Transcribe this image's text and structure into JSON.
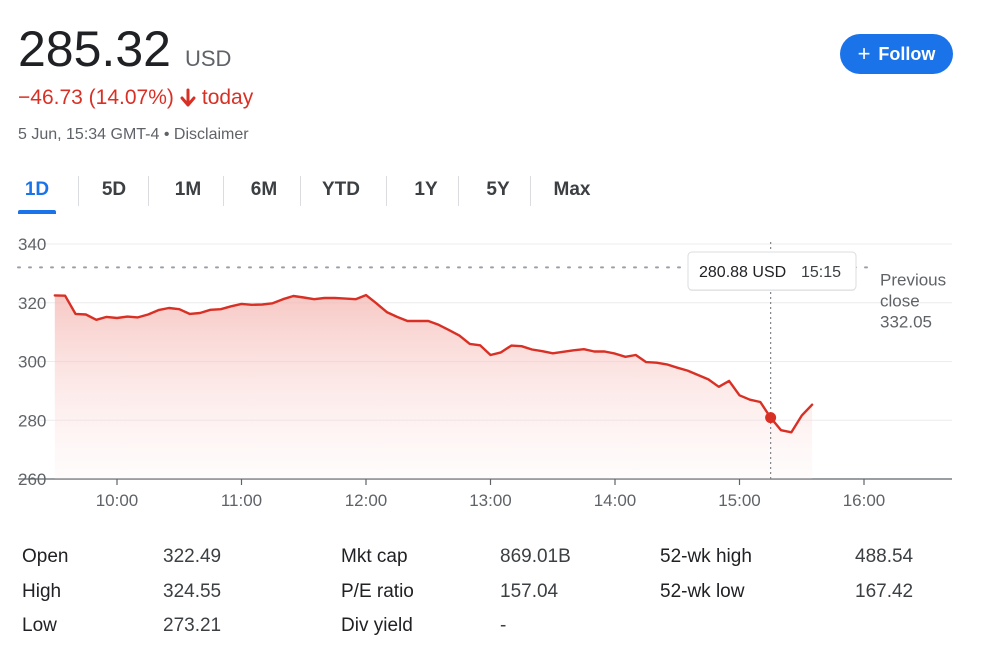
{
  "quote": {
    "price": "285.32",
    "currency": "USD",
    "change": "−46.73 (14.07%)",
    "change_period": "today",
    "timestamp": "5 Jun, 15:34 GMT-4 • Disclaimer",
    "down_color": "#d93025"
  },
  "follow_button": {
    "label": "Follow",
    "icon": "plus-icon",
    "color": "#1a73e8"
  },
  "tabs": [
    {
      "label": "1D",
      "active": true
    },
    {
      "label": "5D",
      "active": false
    },
    {
      "label": "1M",
      "active": false
    },
    {
      "label": "6M",
      "active": false
    },
    {
      "label": "YTD",
      "active": false
    },
    {
      "label": "1Y",
      "active": false
    },
    {
      "label": "5Y",
      "active": false
    },
    {
      "label": "Max",
      "active": false
    }
  ],
  "chart_data": {
    "type": "area",
    "x_tick_labels": [
      "10:00",
      "11:00",
      "12:00",
      "13:00",
      "14:00",
      "15:00",
      "16:00"
    ],
    "y_tick_labels": [
      "340",
      "320",
      "300",
      "280",
      "260"
    ],
    "ylim": [
      260,
      340
    ],
    "grid": true,
    "line_color": "#d93025",
    "previous_close": {
      "label_line1": "Previous",
      "label_line2": "close",
      "value": 332.05
    },
    "tooltip": {
      "value": "280.88 USD",
      "time": "15:15"
    },
    "highlight_point": {
      "time": "15:15",
      "value": 280.88
    },
    "series": [
      {
        "points": [
          [
            "9:30",
            322.5
          ],
          [
            "9:35",
            322.4
          ],
          [
            "9:40",
            316.2
          ],
          [
            "9:45",
            316.0
          ],
          [
            "9:50",
            314.2
          ],
          [
            "9:55",
            315.2
          ],
          [
            "10:00",
            314.8
          ],
          [
            "10:05",
            315.3
          ],
          [
            "10:10",
            315.0
          ],
          [
            "10:15",
            316.0
          ],
          [
            "10:20",
            317.5
          ],
          [
            "10:25",
            318.2
          ],
          [
            "10:30",
            317.8
          ],
          [
            "10:35",
            316.2
          ],
          [
            "10:40",
            316.5
          ],
          [
            "10:45",
            317.6
          ],
          [
            "10:50",
            317.8
          ],
          [
            "10:55",
            318.8
          ],
          [
            "11:00",
            319.6
          ],
          [
            "11:05",
            319.3
          ],
          [
            "11:10",
            319.4
          ],
          [
            "11:15",
            319.8
          ],
          [
            "11:20",
            321.2
          ],
          [
            "11:25",
            322.3
          ],
          [
            "11:30",
            321.8
          ],
          [
            "11:35",
            321.2
          ],
          [
            "11:40",
            321.6
          ],
          [
            "11:45",
            321.6
          ],
          [
            "11:50",
            321.4
          ],
          [
            "11:55",
            321.2
          ],
          [
            "12:00",
            322.6
          ],
          [
            "12:05",
            319.8
          ],
          [
            "12:10",
            316.8
          ],
          [
            "12:15",
            315.2
          ],
          [
            "12:20",
            313.8
          ],
          [
            "12:25",
            313.8
          ],
          [
            "12:30",
            313.8
          ],
          [
            "12:35",
            312.5
          ],
          [
            "12:40",
            310.7
          ],
          [
            "12:45",
            308.8
          ],
          [
            "12:50",
            306.0
          ],
          [
            "12:55",
            305.5
          ],
          [
            "13:00",
            302.2
          ],
          [
            "13:05",
            303.1
          ],
          [
            "13:10",
            305.4
          ],
          [
            "13:15",
            305.2
          ],
          [
            "13:20",
            304.1
          ],
          [
            "13:25",
            303.5
          ],
          [
            "13:30",
            302.8
          ],
          [
            "13:35",
            303.3
          ],
          [
            "13:40",
            303.8
          ],
          [
            "13:45",
            304.2
          ],
          [
            "13:50",
            303.4
          ],
          [
            "13:55",
            303.4
          ],
          [
            "14:00",
            302.7
          ],
          [
            "14:05",
            301.6
          ],
          [
            "14:10",
            302.2
          ],
          [
            "14:15",
            299.8
          ],
          [
            "14:20",
            299.6
          ],
          [
            "14:25",
            299.0
          ],
          [
            "14:30",
            297.9
          ],
          [
            "14:35",
            296.9
          ],
          [
            "14:40",
            295.4
          ],
          [
            "14:45",
            293.9
          ],
          [
            "14:50",
            291.4
          ],
          [
            "14:55",
            293.4
          ],
          [
            "15:00",
            288.5
          ],
          [
            "15:05",
            287.0
          ],
          [
            "15:10",
            286.2
          ],
          [
            "15:15",
            280.9
          ],
          [
            "15:20",
            276.6
          ],
          [
            "15:25",
            275.9
          ],
          [
            "15:30",
            281.6
          ],
          [
            "15:35",
            285.3
          ]
        ]
      }
    ]
  },
  "stats": [
    {
      "label": "Open",
      "value": "322.49"
    },
    {
      "label": "High",
      "value": "324.55"
    },
    {
      "label": "Low",
      "value": "273.21"
    },
    {
      "label": "Mkt cap",
      "value": "869.01B"
    },
    {
      "label": "P/E ratio",
      "value": "157.04"
    },
    {
      "label": "Div yield",
      "value": "-"
    },
    {
      "label": "52-wk high",
      "value": "488.54"
    },
    {
      "label": "52-wk low",
      "value": "167.42"
    }
  ]
}
